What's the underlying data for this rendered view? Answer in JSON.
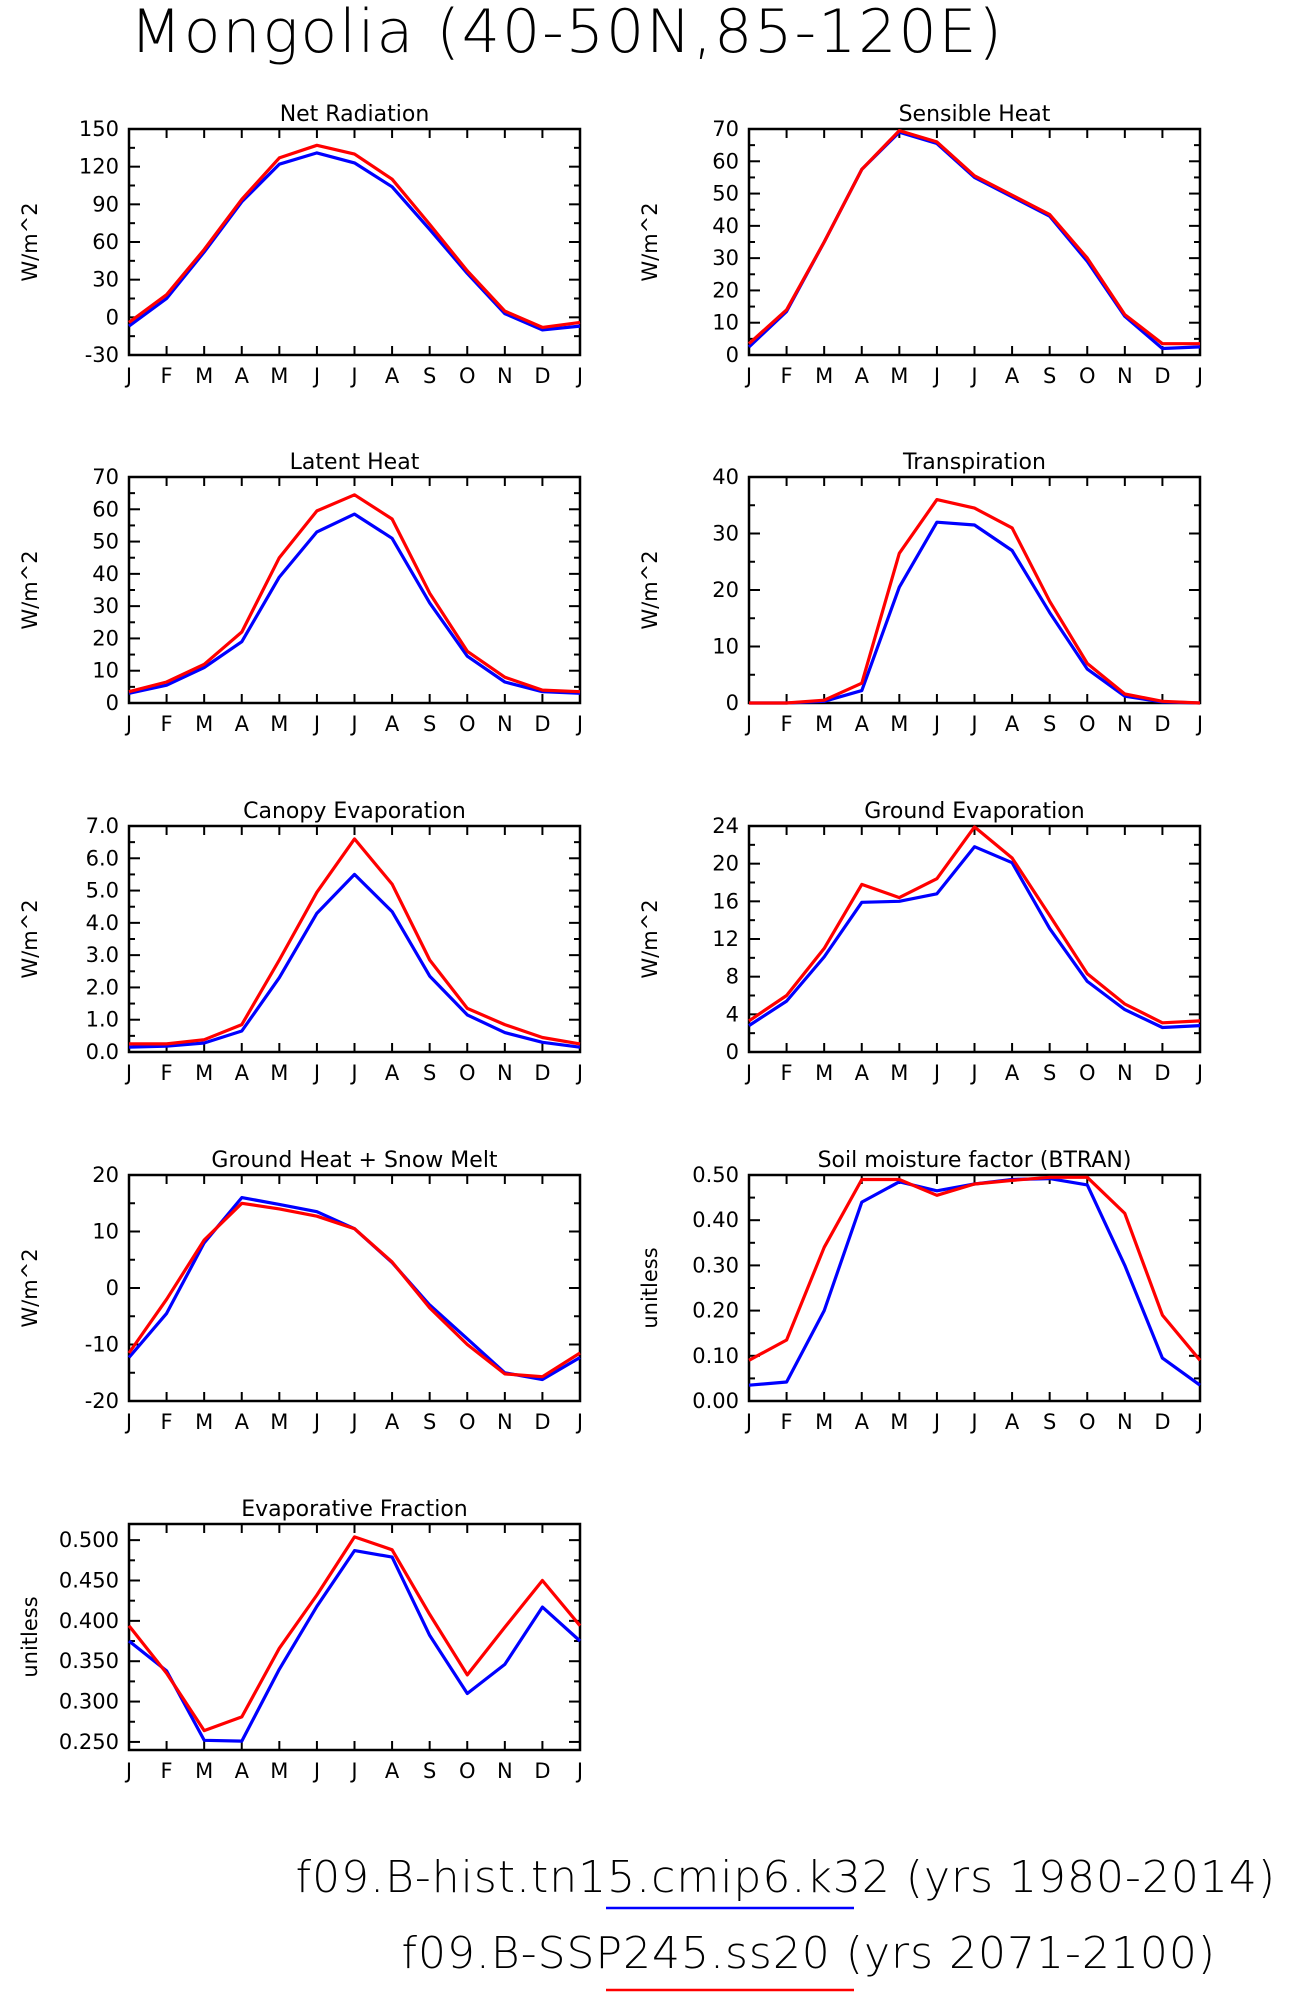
{
  "title": "Mongolia (40-50N,85-120E)",
  "legend": [
    {
      "label": "f09.B-hist.tn15.cmip6.k32 (yrs 1980-2014)",
      "color": "#0000ff"
    },
    {
      "label": "f09.B-SSP245.ss20 (yrs 2071-2100)",
      "color": "#ff0000"
    }
  ],
  "chart_data": [
    {
      "type": "line",
      "title": "Net Radiation",
      "ylabel": "W/m^2",
      "xlabel": "",
      "categories": [
        "J",
        "F",
        "M",
        "A",
        "M",
        "J",
        "J",
        "A",
        "S",
        "O",
        "N",
        "D",
        "J"
      ],
      "ylim": [
        -30,
        150
      ],
      "yticks": [
        -30,
        0,
        30,
        60,
        90,
        120,
        150
      ],
      "ytick_labels": [
        "-30",
        "0",
        "30",
        "60",
        "90",
        "120",
        "150"
      ],
      "series": [
        {
          "color": "#0000ff",
          "values": [
            -7,
            15,
            52,
            92,
            122,
            131,
            123,
            104,
            70,
            35,
            3,
            -10,
            -7
          ]
        },
        {
          "color": "#ff0000",
          "values": [
            -4,
            18,
            54,
            94,
            127,
            137,
            130,
            110,
            74,
            37,
            5,
            -8,
            -4
          ]
        }
      ]
    },
    {
      "type": "line",
      "title": "Sensible Heat",
      "ylabel": "W/m^2",
      "xlabel": "",
      "categories": [
        "J",
        "F",
        "M",
        "A",
        "M",
        "J",
        "J",
        "A",
        "S",
        "O",
        "N",
        "D",
        "J"
      ],
      "ylim": [
        0,
        70
      ],
      "yticks": [
        0,
        10,
        20,
        30,
        40,
        50,
        60,
        70
      ],
      "ytick_labels": [
        "0",
        "10",
        "20",
        "30",
        "40",
        "50",
        "60",
        "70"
      ],
      "series": [
        {
          "color": "#0000ff",
          "values": [
            2.5,
            13.5,
            35,
            57.5,
            69,
            65.5,
            55,
            49,
            43,
            29,
            12,
            2,
            2.5
          ]
        },
        {
          "color": "#ff0000",
          "values": [
            3.5,
            14,
            35,
            57.5,
            69.5,
            66,
            55.5,
            49.5,
            43.5,
            30,
            12.5,
            3.5,
            3.5
          ]
        }
      ]
    },
    {
      "type": "line",
      "title": "Latent Heat",
      "ylabel": "W/m^2",
      "xlabel": "",
      "categories": [
        "J",
        "F",
        "M",
        "A",
        "M",
        "J",
        "J",
        "A",
        "S",
        "O",
        "N",
        "D",
        "J"
      ],
      "ylim": [
        0,
        70
      ],
      "yticks": [
        0,
        10,
        20,
        30,
        40,
        50,
        60,
        70
      ],
      "ytick_labels": [
        "0",
        "10",
        "20",
        "30",
        "40",
        "50",
        "60",
        "70"
      ],
      "series": [
        {
          "color": "#0000ff",
          "values": [
            3,
            5.5,
            11,
            19,
            39,
            53,
            58.5,
            51,
            31,
            14.5,
            6.5,
            3.5,
            3
          ]
        },
        {
          "color": "#ff0000",
          "values": [
            3.5,
            6.5,
            12,
            22,
            45,
            59.5,
            64.5,
            57,
            34,
            16,
            8,
            4,
            3.5
          ]
        }
      ]
    },
    {
      "type": "line",
      "title": "Transpiration",
      "ylabel": "W/m^2",
      "xlabel": "",
      "categories": [
        "J",
        "F",
        "M",
        "A",
        "M",
        "J",
        "J",
        "A",
        "S",
        "O",
        "N",
        "D",
        "J"
      ],
      "ylim": [
        0,
        40
      ],
      "yticks": [
        0,
        10,
        20,
        30,
        40
      ],
      "ytick_labels": [
        "0",
        "10",
        "20",
        "30",
        "40"
      ],
      "series": [
        {
          "color": "#0000ff",
          "values": [
            0,
            0,
            0.3,
            2.2,
            20.5,
            32,
            31.5,
            27,
            16,
            6,
            1.2,
            0.2,
            0
          ]
        },
        {
          "color": "#ff0000",
          "values": [
            0,
            0,
            0.5,
            3.5,
            26.5,
            36,
            34.5,
            31,
            18,
            7,
            1.6,
            0.3,
            0
          ]
        }
      ]
    },
    {
      "type": "line",
      "title": "Canopy Evaporation",
      "ylabel": "W/m^2",
      "xlabel": "",
      "categories": [
        "J",
        "F",
        "M",
        "A",
        "M",
        "J",
        "J",
        "A",
        "S",
        "O",
        "N",
        "D",
        "J"
      ],
      "ylim": [
        0,
        7
      ],
      "yticks": [
        0,
        1,
        2,
        3,
        4,
        5,
        6,
        7
      ],
      "ytick_labels": [
        "0.0",
        "1.0",
        "2.0",
        "3.0",
        "4.0",
        "5.0",
        "6.0",
        "7.0"
      ],
      "series": [
        {
          "color": "#0000ff",
          "values": [
            0.15,
            0.18,
            0.28,
            0.65,
            2.3,
            4.3,
            5.5,
            4.35,
            2.35,
            1.15,
            0.6,
            0.3,
            0.15
          ]
        },
        {
          "color": "#ff0000",
          "values": [
            0.25,
            0.25,
            0.38,
            0.85,
            2.85,
            4.95,
            6.6,
            5.2,
            2.85,
            1.35,
            0.85,
            0.45,
            0.25
          ]
        }
      ]
    },
    {
      "type": "line",
      "title": "Ground Evaporation",
      "ylabel": "W/m^2",
      "xlabel": "",
      "categories": [
        "J",
        "F",
        "M",
        "A",
        "M",
        "J",
        "J",
        "A",
        "S",
        "O",
        "N",
        "D",
        "J"
      ],
      "ylim": [
        0,
        24
      ],
      "yticks": [
        0,
        4,
        8,
        12,
        16,
        20,
        24
      ],
      "ytick_labels": [
        "0",
        "4",
        "8",
        "12",
        "16",
        "20",
        "24"
      ],
      "series": [
        {
          "color": "#0000ff",
          "values": [
            2.8,
            5.4,
            10.1,
            15.9,
            16,
            16.8,
            21.8,
            20.1,
            13.1,
            7.5,
            4.5,
            2.6,
            2.8
          ]
        },
        {
          "color": "#ff0000",
          "values": [
            3.3,
            6,
            11,
            17.8,
            16.4,
            18.4,
            23.9,
            20.6,
            14.5,
            8.3,
            5.1,
            3.1,
            3.3
          ]
        }
      ]
    },
    {
      "type": "line",
      "title": "Ground Heat + Snow Melt",
      "ylabel": "W/m^2",
      "xlabel": "",
      "categories": [
        "J",
        "F",
        "M",
        "A",
        "M",
        "J",
        "J",
        "A",
        "S",
        "O",
        "N",
        "D",
        "J"
      ],
      "ylim": [
        -20,
        20
      ],
      "yticks": [
        -20,
        -10,
        0,
        10,
        20
      ],
      "ytick_labels": [
        "-20",
        "-10",
        "0",
        "10",
        "20"
      ],
      "series": [
        {
          "color": "#0000ff",
          "values": [
            -12.3,
            -4.5,
            8,
            16,
            14.8,
            13.5,
            10.5,
            4.5,
            -3,
            -9,
            -15,
            -16.2,
            -12.3
          ]
        },
        {
          "color": "#ff0000",
          "values": [
            -11.5,
            -2,
            8.5,
            15,
            14,
            12.7,
            10.5,
            4.6,
            -3.5,
            -10,
            -15.2,
            -15.7,
            -11.5
          ]
        }
      ]
    },
    {
      "type": "line",
      "title": "Soil moisture factor (BTRAN)",
      "ylabel": "unitless",
      "xlabel": "",
      "categories": [
        "J",
        "F",
        "M",
        "A",
        "M",
        "J",
        "J",
        "A",
        "S",
        "O",
        "N",
        "D",
        "J"
      ],
      "ylim": [
        0,
        0.5
      ],
      "yticks": [
        0,
        0.1,
        0.2,
        0.3,
        0.4,
        0.5
      ],
      "ytick_labels": [
        "0.00",
        "0.10",
        "0.20",
        "0.30",
        "0.40",
        "0.50"
      ],
      "series": [
        {
          "color": "#0000ff",
          "values": [
            0.035,
            0.042,
            0.2,
            0.44,
            0.485,
            0.465,
            0.48,
            0.49,
            0.492,
            0.478,
            0.3,
            0.095,
            0.035
          ]
        },
        {
          "color": "#ff0000",
          "values": [
            0.09,
            0.135,
            0.34,
            0.49,
            0.49,
            0.455,
            0.48,
            0.488,
            0.495,
            0.495,
            0.415,
            0.19,
            0.09
          ]
        }
      ]
    },
    {
      "type": "line",
      "title": "Evaporative Fraction",
      "ylabel": "unitless",
      "xlabel": "",
      "categories": [
        "J",
        "F",
        "M",
        "A",
        "M",
        "J",
        "J",
        "A",
        "S",
        "O",
        "N",
        "D",
        "J"
      ],
      "ylim": [
        0.24,
        0.52
      ],
      "yticks": [
        0.25,
        0.3,
        0.35,
        0.4,
        0.45,
        0.5
      ],
      "ytick_labels": [
        "0.250",
        "0.300",
        "0.350",
        "0.400",
        "0.450",
        "0.500"
      ],
      "series": [
        {
          "color": "#0000ff",
          "values": [
            0.375,
            0.338,
            0.252,
            0.251,
            0.34,
            0.418,
            0.487,
            0.479,
            0.382,
            0.31,
            0.346,
            0.417,
            0.375
          ]
        },
        {
          "color": "#ff0000",
          "values": [
            0.394,
            0.335,
            0.264,
            0.281,
            0.366,
            0.432,
            0.504,
            0.488,
            0.408,
            0.333,
            0.392,
            0.45,
            0.394
          ]
        }
      ]
    }
  ]
}
